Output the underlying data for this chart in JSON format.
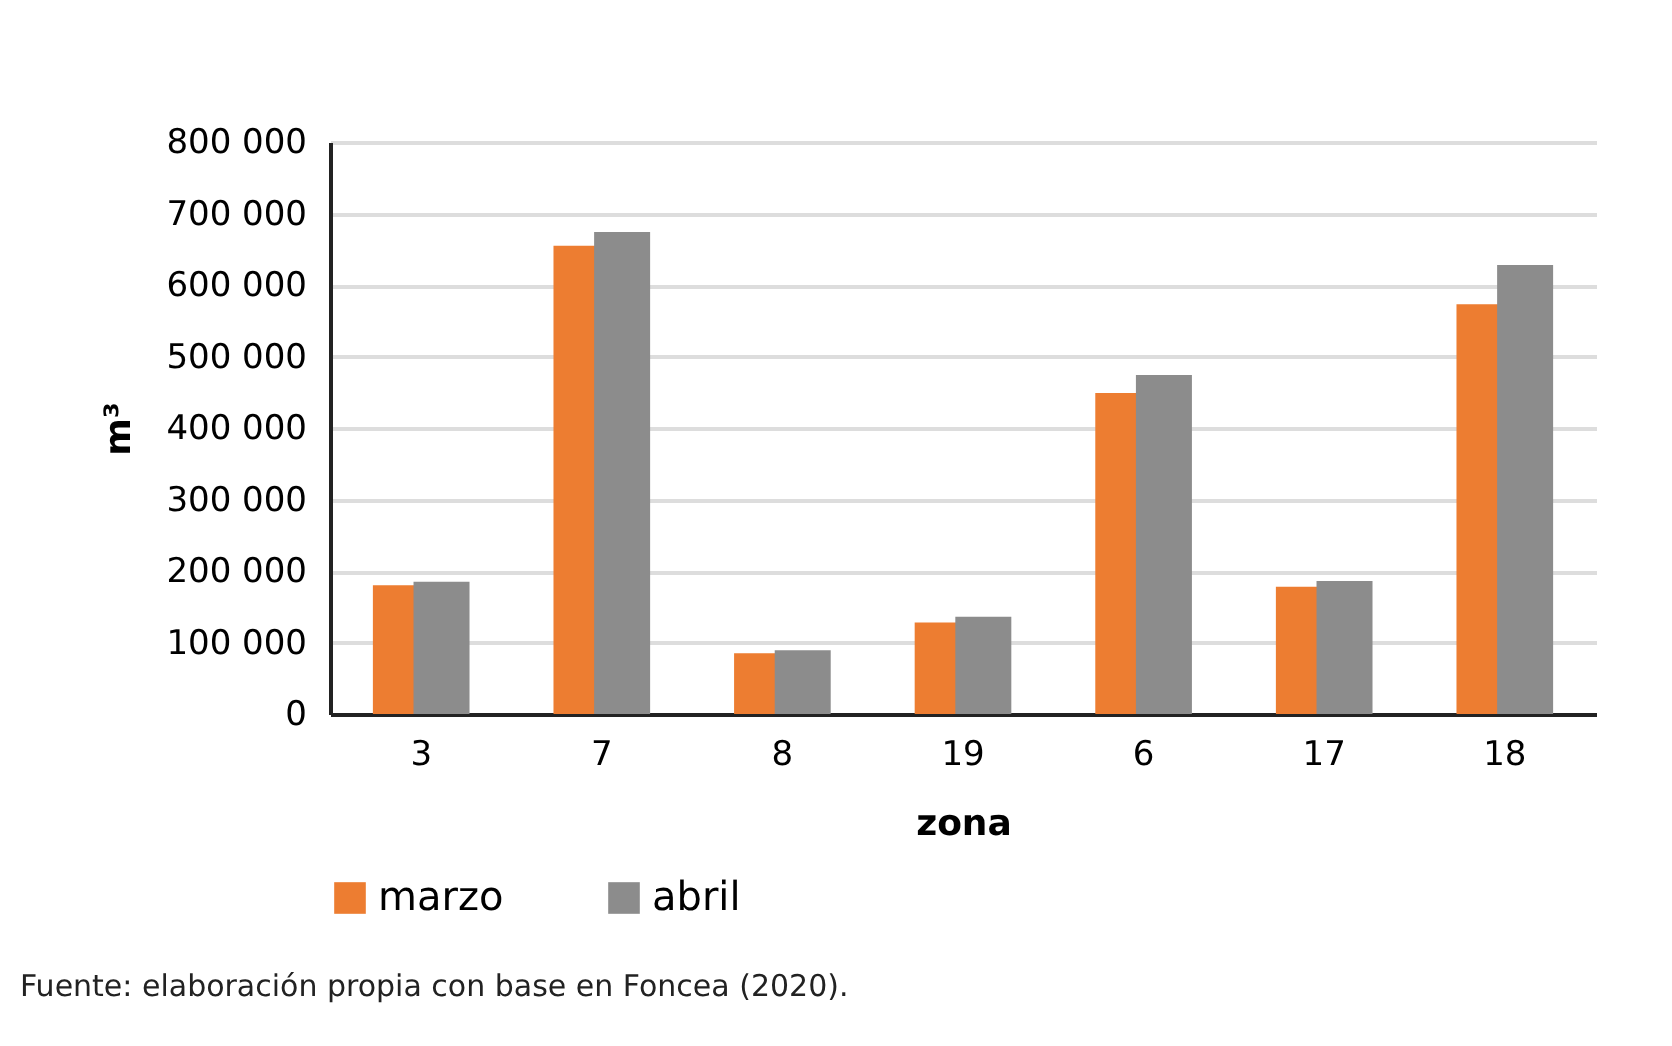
{
  "chart_data": {
    "type": "bar",
    "xlabel": "zona",
    "ylabel": "m³",
    "categories": [
      "3",
      "7",
      "8",
      "19",
      "6",
      "17",
      "18"
    ],
    "series": [
      {
        "name": "marzo",
        "color": "#ed7d31",
        "values": [
          180000,
          655000,
          85000,
          128000,
          449000,
          178000,
          573000
        ]
      },
      {
        "name": "abril",
        "color": "#8c8c8c",
        "values": [
          185000,
          674000,
          89000,
          136000,
          474000,
          186000,
          628000
        ]
      }
    ],
    "ylim": [
      0,
      800000
    ],
    "yticks": [
      {
        "value": 0,
        "label": "0"
      },
      {
        "value": 100000,
        "label": "100 000"
      },
      {
        "value": 200000,
        "label": "200 000"
      },
      {
        "value": 300000,
        "label": "300 000"
      },
      {
        "value": 400000,
        "label": "400 000"
      },
      {
        "value": 500000,
        "label": "500 000"
      },
      {
        "value": 600000,
        "label": "600 000"
      },
      {
        "value": 700000,
        "label": "700 000"
      },
      {
        "value": 800000,
        "label": "800 000"
      }
    ],
    "grid": "y",
    "legend": "bottom",
    "annotations": [
      "Fuente: elaboración propia con base en Foncea (2020)."
    ]
  }
}
